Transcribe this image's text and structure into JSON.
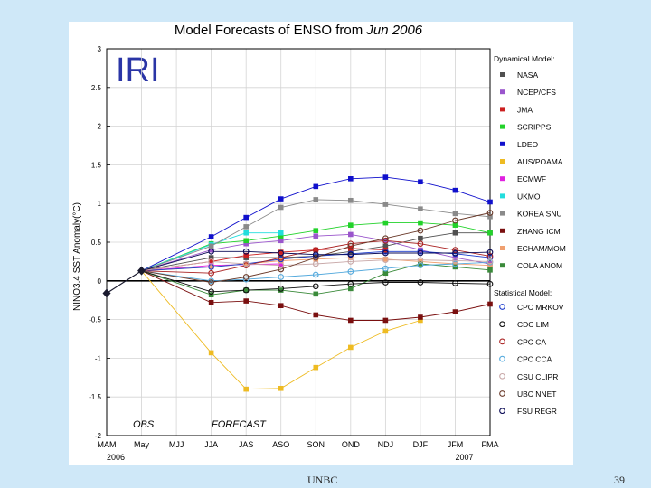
{
  "slide": {
    "footer_left": "UNBC",
    "page_number": "39",
    "logo_text": "IRI"
  },
  "chart_data": {
    "type": "line",
    "title_prefix": "Model Forecasts of ENSO from ",
    "title_date": "Jun 2006",
    "ylabel": "NINO3.4 SST Anomaly(°C)",
    "ylim": [
      -2,
      3
    ],
    "yticks": [
      -2,
      -1.5,
      -1,
      -0.5,
      0,
      0.5,
      1,
      1.5,
      2,
      2.5,
      3
    ],
    "ytick_labels": [
      "-2",
      "-1.5",
      "-1",
      "-0.5",
      "0",
      "0.5",
      "1",
      "1.5",
      "2",
      "2.5",
      "3"
    ],
    "categories": [
      "MAM",
      "May",
      "MJJ",
      "JJA",
      "JAS",
      "ASO",
      "SON",
      "OND",
      "NDJ",
      "DJF",
      "JFM",
      "FMA"
    ],
    "year_labels": [
      {
        "index": 0,
        "text": "2006"
      },
      {
        "index": 10,
        "text": "2007"
      }
    ],
    "obs_label": "OBS",
    "forecast_label": "FORECAST",
    "observed": {
      "name": "Observed",
      "color": "#1a1a2e",
      "points": [
        [
          0,
          -0.16
        ],
        [
          1,
          0.13
        ]
      ]
    },
    "dynamical_title": "Dynamical Model:",
    "statistical_title": "Statistical Model:",
    "series": [
      {
        "name": "NASA",
        "group": "dynamical",
        "marker": "square",
        "color": "#505050",
        "values": [
          null,
          0.13,
          null,
          0.3,
          0.3,
          0.3,
          0.32,
          0.38,
          0.45,
          0.55,
          0.62,
          0.62
        ]
      },
      {
        "name": "NCEP/CFS",
        "group": "dynamical",
        "marker": "square",
        "color": "#9a55cc",
        "values": [
          null,
          0.13,
          null,
          0.4,
          0.48,
          0.52,
          0.58,
          0.6,
          0.52,
          0.4,
          0.3,
          0.22
        ]
      },
      {
        "name": "JMA",
        "group": "dynamical",
        "marker": "square",
        "color": "#cc1f1f",
        "values": [
          null,
          0.13,
          null,
          0.25,
          0.33,
          0.37,
          0.4,
          0.42,
          0.4,
          null,
          null,
          null
        ]
      },
      {
        "name": "SCRIPPS",
        "group": "dynamical",
        "marker": "square",
        "color": "#22d22a",
        "values": [
          null,
          0.13,
          null,
          0.48,
          0.52,
          0.58,
          0.65,
          0.72,
          0.75,
          0.75,
          0.72,
          0.62
        ]
      },
      {
        "name": "LDEO",
        "group": "dynamical",
        "marker": "square",
        "color": "#1010cc",
        "values": [
          null,
          0.13,
          null,
          0.57,
          0.82,
          1.06,
          1.22,
          1.32,
          1.34,
          1.28,
          1.17,
          1.02
        ]
      },
      {
        "name": "AUS/POAMA",
        "group": "dynamical",
        "marker": "square",
        "color": "#eebb22",
        "values": [
          null,
          0.13,
          null,
          -0.93,
          -1.4,
          -1.39,
          -1.12,
          -0.86,
          -0.65,
          -0.51,
          null,
          null
        ]
      },
      {
        "name": "ECMWF",
        "group": "dynamical",
        "marker": "square",
        "color": "#e020e0",
        "values": [
          null,
          0.13,
          null,
          0.2,
          0.21,
          0.22,
          null,
          null,
          null,
          null,
          null,
          null
        ]
      },
      {
        "name": "UKMO",
        "group": "dynamical",
        "marker": "square",
        "color": "#22dddd",
        "values": [
          null,
          0.13,
          null,
          0.47,
          0.62,
          0.62,
          null,
          null,
          null,
          null,
          null,
          null
        ]
      },
      {
        "name": "KOREA SNU",
        "group": "dynamical",
        "marker": "square",
        "color": "#8a8a8a",
        "values": [
          null,
          0.13,
          null,
          0.45,
          0.7,
          0.95,
          1.05,
          1.04,
          0.99,
          0.93,
          0.87,
          0.83
        ]
      },
      {
        "name": "ZHANG ICM",
        "group": "dynamical",
        "marker": "square",
        "color": "#7a0f0f",
        "values": [
          null,
          0.13,
          null,
          -0.28,
          -0.26,
          -0.32,
          -0.44,
          -0.51,
          -0.51,
          -0.47,
          -0.4,
          -0.3
        ]
      },
      {
        "name": "ECHAM/MOM",
        "group": "dynamical",
        "marker": "square",
        "color": "#f0a070",
        "values": [
          null,
          0.13,
          null,
          0.18,
          0.22,
          0.26,
          0.28,
          0.3,
          0.28,
          0.25,
          0.22,
          0.2
        ]
      },
      {
        "name": "COLA ANOM",
        "group": "dynamical",
        "marker": "square",
        "color": "#3a8a3a",
        "values": [
          null,
          0.13,
          null,
          -0.18,
          -0.12,
          -0.12,
          -0.17,
          -0.1,
          0.1,
          0.22,
          0.18,
          0.14
        ]
      },
      {
        "name": "CPC MRKOV",
        "group": "statistical",
        "marker": "circle",
        "color": "#1a3acc",
        "values": [
          null,
          0.13,
          null,
          0.18,
          0.22,
          0.28,
          0.32,
          0.35,
          0.38,
          0.38,
          0.35,
          0.3
        ]
      },
      {
        "name": "CDC LIM",
        "group": "statistical",
        "marker": "circle",
        "color": "#111111",
        "values": [
          null,
          0.13,
          null,
          -0.14,
          -0.12,
          -0.1,
          -0.07,
          -0.04,
          -0.02,
          -0.02,
          -0.03,
          -0.04
        ]
      },
      {
        "name": "CPC CA",
        "group": "statistical",
        "marker": "circle",
        "color": "#aa2222",
        "values": [
          null,
          0.13,
          null,
          0.1,
          0.2,
          0.3,
          0.4,
          0.48,
          0.52,
          0.48,
          0.4,
          0.32
        ]
      },
      {
        "name": "CPC CCA",
        "group": "statistical",
        "marker": "circle",
        "color": "#55aadd",
        "values": [
          null,
          0.13,
          null,
          0.0,
          0.02,
          0.05,
          0.08,
          0.12,
          0.16,
          0.2,
          0.22,
          0.24
        ]
      },
      {
        "name": "CSU CLIPR",
        "group": "statistical",
        "marker": "circle",
        "color": "#c8a8a8",
        "values": [
          null,
          0.13,
          null,
          0.25,
          0.22,
          0.2,
          0.22,
          0.25,
          0.27,
          0.27,
          0.26,
          0.25
        ]
      },
      {
        "name": "UBC NNET",
        "group": "statistical",
        "marker": "circle",
        "color": "#6a3a2a",
        "values": [
          null,
          0.13,
          null,
          -0.02,
          0.05,
          0.15,
          0.3,
          0.45,
          0.55,
          0.65,
          0.78,
          0.88
        ]
      },
      {
        "name": "FSU REGR",
        "group": "statistical",
        "marker": "circle",
        "color": "#0a0a55",
        "values": [
          null,
          0.13,
          null,
          0.38,
          0.38,
          0.36,
          0.34,
          0.34,
          0.36,
          0.36,
          0.36,
          0.37
        ]
      }
    ]
  }
}
